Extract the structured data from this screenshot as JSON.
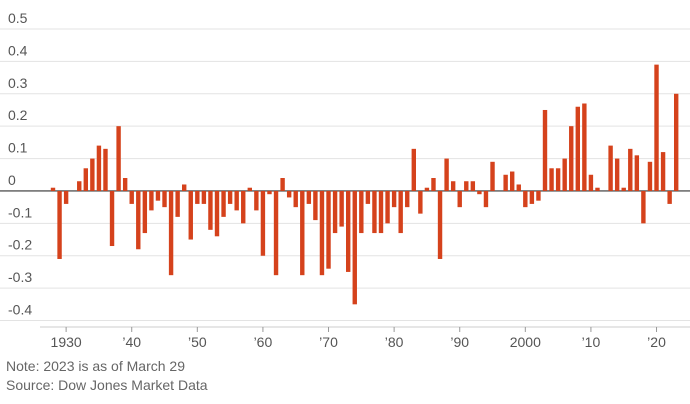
{
  "chart_data": {
    "type": "bar",
    "categories": [
      null,
      null,
      "1930",
      null,
      null,
      null,
      null,
      null,
      null,
      null,
      null,
      null,
      "’40",
      null,
      null,
      null,
      null,
      null,
      null,
      null,
      null,
      null,
      "’50",
      null,
      null,
      null,
      null,
      null,
      null,
      null,
      null,
      null,
      "’60",
      null,
      null,
      null,
      null,
      null,
      null,
      null,
      null,
      null,
      "’70",
      null,
      null,
      null,
      null,
      null,
      null,
      null,
      null,
      null,
      "’80",
      null,
      null,
      null,
      null,
      null,
      null,
      null,
      null,
      null,
      "’90",
      null,
      null,
      null,
      null,
      null,
      null,
      null,
      null,
      null,
      "2000",
      null,
      null,
      null,
      null,
      null,
      null,
      null,
      null,
      null,
      "’10",
      null,
      null,
      null,
      null,
      null,
      null,
      null,
      null,
      null,
      "’20",
      null,
      null,
      null
    ],
    "values": [
      0.01,
      -0.21,
      -0.04,
      0,
      0.03,
      0.07,
      0.1,
      0.14,
      0.13,
      -0.17,
      0.2,
      0.04,
      -0.04,
      -0.18,
      -0.13,
      -0.06,
      -0.03,
      -0.05,
      -0.26,
      -0.08,
      0.02,
      -0.15,
      -0.04,
      -0.04,
      -0.12,
      -0.14,
      -0.08,
      -0.04,
      -0.06,
      -0.1,
      0.01,
      -0.06,
      -0.2,
      -0.01,
      -0.26,
      0.04,
      -0.02,
      -0.05,
      -0.26,
      -0.04,
      -0.09,
      -0.26,
      -0.24,
      -0.13,
      -0.11,
      -0.25,
      -0.35,
      -0.13,
      -0.04,
      -0.13,
      -0.13,
      -0.1,
      -0.05,
      -0.13,
      -0.05,
      0.13,
      -0.07,
      0.01,
      0.04,
      -0.21,
      0.1,
      0.03,
      -0.05,
      0.03,
      0.03,
      -0.01,
      -0.05,
      0.09,
      0,
      0.05,
      0.06,
      0.02,
      -0.05,
      -0.04,
      -0.03,
      0.25,
      0.07,
      0.07,
      0.1,
      0.2,
      0.26,
      0.27,
      0.05,
      0.01,
      0,
      0.14,
      0.1,
      0.01,
      0.13,
      0.11,
      -0.1,
      0.09,
      0.39,
      0.12,
      -0.04,
      0.3
    ],
    "color": "#d5421c",
    "ylim": [
      -0.42,
      0.5
    ],
    "yticks": [
      0.5,
      0.4,
      0.3,
      0.2,
      0.1,
      0,
      -0.1,
      -0.2,
      -0.3,
      -0.4
    ],
    "grid": true,
    "notes": [
      "Note: 2023 is as of March 29",
      "Source: Dow Jones Market Data"
    ]
  }
}
